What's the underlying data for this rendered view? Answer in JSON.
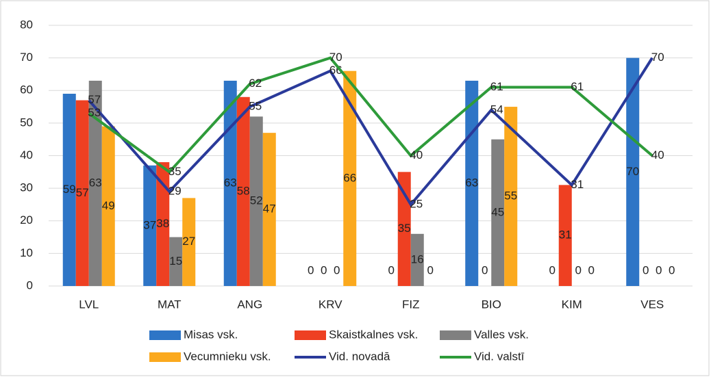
{
  "chart_data": {
    "type": "bar-line",
    "categories": [
      "LVL",
      "MAT",
      "ANG",
      "KRV",
      "FIZ",
      "BIO",
      "KIM",
      "VES"
    ],
    "series": [
      {
        "name": "Misas vsk.",
        "kind": "bar",
        "color": "#2e75c6",
        "values": [
          59,
          37,
          63,
          0,
          0,
          63,
          0,
          70
        ]
      },
      {
        "name": "Skaistkalnes vsk.",
        "kind": "bar",
        "color": "#ee4022",
        "values": [
          57,
          38,
          58,
          0,
          35,
          0,
          31,
          0
        ]
      },
      {
        "name": "Valles vsk.",
        "kind": "bar",
        "color": "#808080",
        "values": [
          63,
          15,
          52,
          0,
          16,
          45,
          0,
          0
        ]
      },
      {
        "name": "Vecumnieku vsk.",
        "kind": "bar",
        "color": "#fba91e",
        "values": [
          49,
          27,
          47,
          66,
          0,
          55,
          0,
          0
        ]
      },
      {
        "name": "Vid. novadā",
        "kind": "line",
        "color": "#2a3a9a",
        "values": [
          57,
          29,
          55,
          66,
          25,
          54,
          31,
          70
        ]
      },
      {
        "name": "Vid. valstī",
        "kind": "line",
        "color": "#2e9b3a",
        "values": [
          53,
          35,
          62,
          70,
          40,
          61,
          61,
          40
        ]
      }
    ],
    "ylim": [
      0,
      80
    ],
    "yticks": [
      0,
      10,
      20,
      30,
      40,
      50,
      60,
      70,
      80
    ],
    "grid": true
  }
}
